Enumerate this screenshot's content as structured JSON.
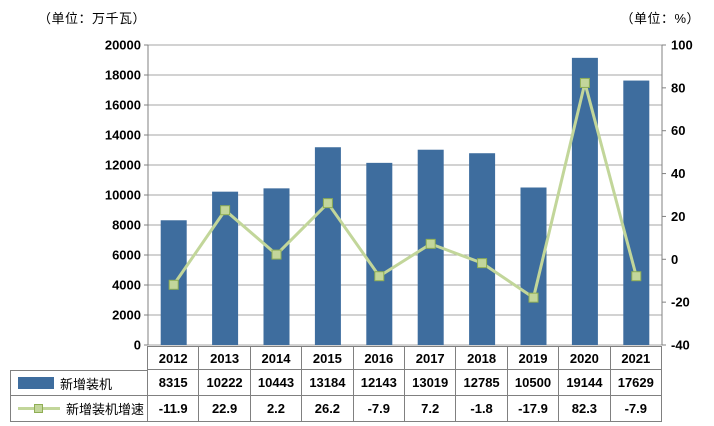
{
  "units": {
    "left": "（单位：万千瓦）",
    "right": "（单位：%）"
  },
  "chart_data": {
    "type": "bar+line",
    "categories": [
      "2012",
      "2013",
      "2014",
      "2015",
      "2016",
      "2017",
      "2018",
      "2019",
      "2020",
      "2021"
    ],
    "series": [
      {
        "name": "新增装机",
        "type": "bar",
        "axis": "left",
        "values": [
          8315,
          10222,
          10443,
          13184,
          12143,
          13019,
          12785,
          10500,
          19144,
          17629
        ],
        "color": "#3E6D9E"
      },
      {
        "name": "新增装机增速",
        "type": "line",
        "axis": "right",
        "values": [
          -11.9,
          22.9,
          2.2,
          26.2,
          -7.9,
          7.2,
          -1.8,
          -17.9,
          82.3,
          -7.9
        ],
        "color": "#C2D69A",
        "marker_fill": "#C3D69B",
        "marker_stroke": "#8FAE54"
      }
    ],
    "left_axis": {
      "min": 0,
      "max": 20000,
      "step": 2000,
      "unit_label": "（单位：万千瓦）"
    },
    "right_axis": {
      "min": -40,
      "max": 100,
      "step": 20,
      "unit_label": "（单位：%）"
    },
    "colors": {
      "grid": "#A6A6A6",
      "axis": "#808080",
      "table_border": "#808080",
      "text": "#000000"
    },
    "grid": true,
    "legend_position": "table-left",
    "title": ""
  }
}
